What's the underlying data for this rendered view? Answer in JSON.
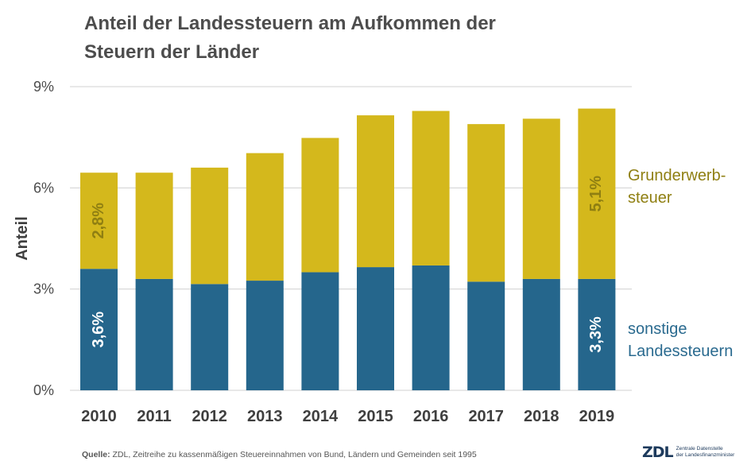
{
  "title_line1": "Anteil der Landessteuern am Aufkommen der",
  "title_line2": "Steuern der Länder",
  "source_label": "Quelle:",
  "source_text": " ZDL, Zeitreihe zu kassenmäßigen Steuereinnahmen von Bund, Ländern und Gemeinden seit 1995",
  "logo": {
    "mark": "ZDL",
    "line1": "Zentrale Datenstelle",
    "line2": "der Landesfinanzminister"
  },
  "colors": {
    "sonstige": "#25668c",
    "grunderwerb": "#d4b81c",
    "grunderwerb_text": "#8f7f12",
    "sonstige_text": "#2a6a8f",
    "grid": "#d0d0d0"
  },
  "chart_data": {
    "type": "bar",
    "stacked": true,
    "categories": [
      "2010",
      "2011",
      "2012",
      "2013",
      "2014",
      "2015",
      "2016",
      "2017",
      "2018",
      "2019"
    ],
    "series": [
      {
        "name": "sonstige Landessteuern",
        "legend_lines": [
          "sonstige",
          "Landessteuern"
        ],
        "color": "#25668c",
        "values": [
          3.6,
          3.3,
          3.15,
          3.25,
          3.5,
          3.65,
          3.7,
          3.22,
          3.3,
          3.3
        ]
      },
      {
        "name": "Grunderwerbsteuer",
        "legend_lines": [
          "Grunderwerb-",
          "steuer"
        ],
        "color": "#d4b81c",
        "values": [
          2.85,
          3.15,
          3.45,
          3.78,
          3.98,
          4.5,
          4.58,
          4.67,
          4.75,
          5.05
        ]
      }
    ],
    "data_labels": [
      {
        "series": 0,
        "index": 0,
        "text": "3,6%"
      },
      {
        "series": 1,
        "index": 0,
        "text": "2,8%"
      },
      {
        "series": 0,
        "index": 9,
        "text": "3,3%"
      },
      {
        "series": 1,
        "index": 9,
        "text": "5,1%"
      }
    ],
    "ylabel": "Anteil",
    "ylim": [
      0,
      9
    ],
    "yticks": [
      0,
      3,
      6,
      9
    ],
    "ytick_labels": [
      "0%",
      "3%",
      "6%",
      "9%"
    ],
    "grid": true,
    "legend_placement": "right, inline"
  }
}
